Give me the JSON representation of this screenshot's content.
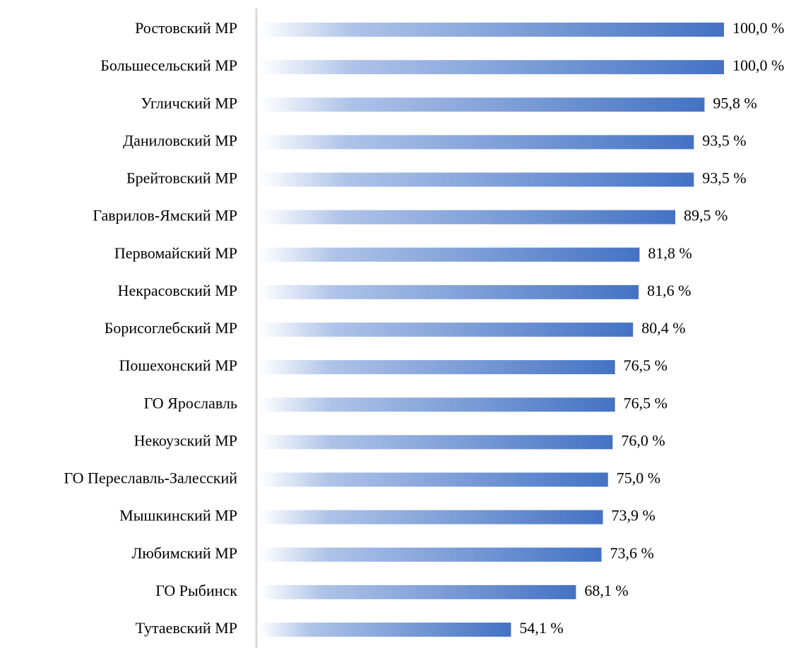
{
  "chart_data": {
    "type": "barh",
    "categories": [
      "Ростовский МР",
      "Большесельский МР",
      "Угличский МР",
      "Даниловский МР",
      "Брейтовский МР",
      "Гаврилов-Ямский МР",
      "Первомайский МР",
      "Некрасовский МР",
      "Борисоглебский МР",
      "Пошехонский МР",
      "ГО Ярославль",
      "Некоузский МР",
      "ГО Переславль-Залесский",
      "Мышкинский МР",
      "Любимский МР",
      "ГО Рыбинск",
      "Тутаевский МР"
    ],
    "values": [
      100.0,
      100.0,
      95.8,
      93.5,
      93.5,
      89.5,
      81.8,
      81.6,
      80.4,
      76.5,
      76.5,
      76.0,
      75.0,
      73.9,
      73.6,
      68.1,
      54.1
    ],
    "value_labels": [
      "100,0 %",
      "100,0 %",
      "95,8 %",
      "93,5 %",
      "93,5 %",
      "89,5 %",
      "81,8 %",
      "81,6 %",
      "80,4 %",
      "76,5 %",
      "76,5 %",
      "76,0 %",
      "75,0 %",
      "73,9 %",
      "73,6 %",
      "68,1 %",
      "54,1 %"
    ],
    "color": "#4472c4",
    "xlim": [
      0,
      100
    ]
  }
}
